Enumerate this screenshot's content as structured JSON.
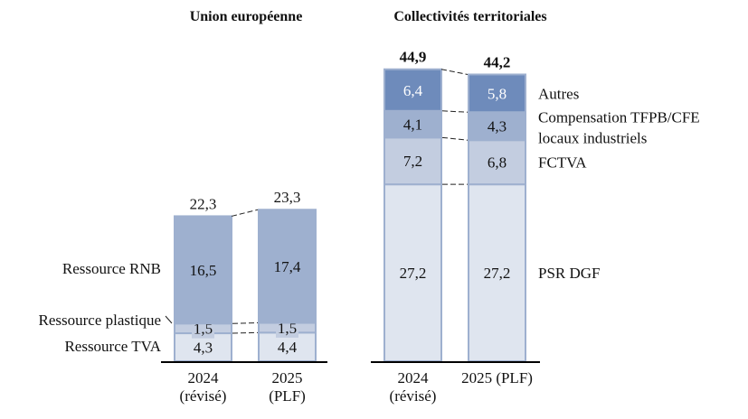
{
  "chart_data": [
    {
      "type": "bar",
      "stacked": true,
      "title": "Union européenne",
      "categories": [
        "2024|(révisé)",
        "2025|(PLF)"
      ],
      "series": [
        {
          "name": "Ressource TVA",
          "values": [
            4.3,
            4.4
          ],
          "labels": [
            "4,3",
            "4,4"
          ],
          "color": "#dfe5ef"
        },
        {
          "name": "Ressource plastique",
          "values": [
            1.5,
            1.5
          ],
          "labels": [
            "1,5",
            "1,5"
          ],
          "color": "#c3cde0"
        },
        {
          "name": "Ressource RNB",
          "values": [
            16.5,
            17.4
          ],
          "labels": [
            "16,5",
            "17,4"
          ],
          "color": "#9eb0cf"
        }
      ],
      "totals": [
        "22,3",
        "23,3"
      ],
      "totals_bold": false,
      "legend_position": "left",
      "ylim": [
        0,
        45
      ]
    },
    {
      "type": "bar",
      "stacked": true,
      "title": "Collectivités territoriales",
      "categories": [
        "2024|(révisé)",
        "2025 (PLF)"
      ],
      "series": [
        {
          "name": "PSR DGF",
          "values": [
            27.2,
            27.2
          ],
          "labels": [
            "27,2",
            "27,2"
          ],
          "color": "#dfe5ef"
        },
        {
          "name": "FCTVA",
          "values": [
            7.2,
            6.8
          ],
          "labels": [
            "7,2",
            "6,8"
          ],
          "color": "#c3cde0"
        },
        {
          "name": "Compensation TFPB/CFE|locaux industriels",
          "values": [
            4.1,
            4.3
          ],
          "labels": [
            "4,1",
            "4,3"
          ],
          "color": "#9eb0cf"
        },
        {
          "name": "Autres",
          "values": [
            6.4,
            5.8
          ],
          "labels": [
            "6,4",
            "5,8"
          ],
          "color": "#6e8bbb",
          "label_color": "#ffffff"
        }
      ],
      "totals": [
        "44,9",
        "44,2"
      ],
      "totals_bold": true,
      "legend_position": "right",
      "ylim": [
        0,
        45
      ]
    }
  ]
}
